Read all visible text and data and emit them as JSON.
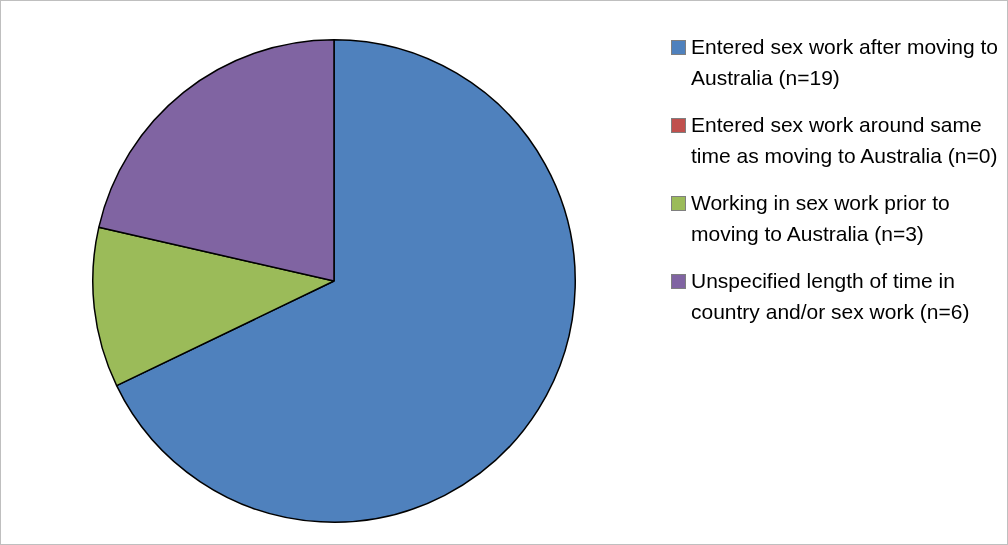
{
  "chart_data": {
    "type": "pie",
    "categories": [
      "Entered sex work after moving to Australia (n=19)",
      "Entered sex work around same time as moving to Australia (n=0)",
      "Working in sex work prior to moving to Australia (n=3)",
      "Unspecified length of time in country and/or sex work (n=6)"
    ],
    "values": [
      19,
      0,
      3,
      6
    ],
    "colors": [
      "#4f81bd",
      "#c0504d",
      "#9bbb59",
      "#8064a2"
    ],
    "legend": "right"
  }
}
